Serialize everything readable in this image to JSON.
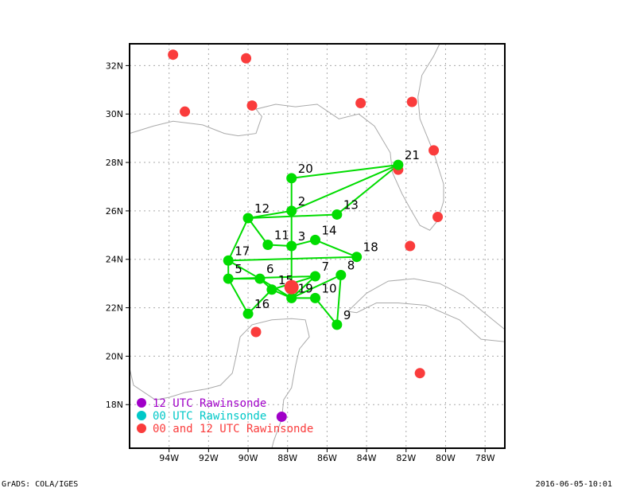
{
  "map": {
    "lon_range": [
      -96,
      -77
    ],
    "lat_range": [
      16.2,
      32.9
    ],
    "lon_ticks": [
      {
        "value": -94,
        "label": "94W"
      },
      {
        "value": -92,
        "label": "92W"
      },
      {
        "value": -90,
        "label": "90W"
      },
      {
        "value": -88,
        "label": "88W"
      },
      {
        "value": -86,
        "label": "86W"
      },
      {
        "value": -84,
        "label": "84W"
      },
      {
        "value": -82,
        "label": "82W"
      },
      {
        "value": -80,
        "label": "80W"
      },
      {
        "value": -78,
        "label": "78W"
      }
    ],
    "lat_ticks": [
      {
        "value": 18,
        "label": "18N"
      },
      {
        "value": 20,
        "label": "20N"
      },
      {
        "value": 22,
        "label": "22N"
      },
      {
        "value": 24,
        "label": "24N"
      },
      {
        "value": 26,
        "label": "26N"
      },
      {
        "value": 28,
        "label": "28N"
      },
      {
        "value": 30,
        "label": "30N"
      },
      {
        "value": 32,
        "label": "32N"
      }
    ]
  },
  "drop_points": [
    {
      "id": "2",
      "lon": -87.8,
      "lat": 26.0
    },
    {
      "id": "3",
      "lon": -87.8,
      "lat": 24.55
    },
    {
      "id": "5",
      "lon": -91.0,
      "lat": 23.2
    },
    {
      "id": "6",
      "lon": -89.4,
      "lat": 23.2
    },
    {
      "id": "7",
      "lon": -86.6,
      "lat": 23.3
    },
    {
      "id": "8",
      "lon": -85.3,
      "lat": 23.35
    },
    {
      "id": "9",
      "lon": -85.5,
      "lat": 21.3
    },
    {
      "id": "10",
      "lon": -86.6,
      "lat": 22.4
    },
    {
      "id": "11",
      "lon": -89.0,
      "lat": 24.6
    },
    {
      "id": "12",
      "lon": -90.0,
      "lat": 25.7
    },
    {
      "id": "13",
      "lon": -85.5,
      "lat": 25.85
    },
    {
      "id": "14",
      "lon": -86.6,
      "lat": 24.8
    },
    {
      "id": "15",
      "lon": -88.8,
      "lat": 22.75
    },
    {
      "id": "16",
      "lon": -90.0,
      "lat": 21.75
    },
    {
      "id": "17",
      "lon": -91.0,
      "lat": 23.95
    },
    {
      "id": "18",
      "lon": -84.5,
      "lat": 24.1
    },
    {
      "id": "19",
      "lon": -87.8,
      "lat": 22.4
    },
    {
      "id": "20",
      "lon": -87.8,
      "lat": 27.35
    },
    {
      "id": "21",
      "lon": -82.4,
      "lat": 27.9
    }
  ],
  "flight_track": [
    "21",
    "20",
    "2",
    "21",
    "13",
    "12",
    "2",
    "3",
    "11",
    "12",
    "17",
    "18",
    "14",
    "3",
    "19",
    "10",
    "9",
    "8",
    "19",
    "7",
    "5",
    "16",
    "15",
    "19",
    "6",
    "5",
    "17",
    "6",
    "15",
    "7"
  ],
  "storm_center": {
    "lon": -87.8,
    "lat": 22.85
  },
  "rawinsonde_12utc": [
    {
      "lon": -88.3,
      "lat": 17.5
    }
  ],
  "rawinsonde_00_12utc": [
    {
      "lon": -93.8,
      "lat": 32.45
    },
    {
      "lon": -90.1,
      "lat": 32.3
    },
    {
      "lon": -93.2,
      "lat": 30.1
    },
    {
      "lon": -89.8,
      "lat": 30.35
    },
    {
      "lon": -84.3,
      "lat": 30.45
    },
    {
      "lon": -81.7,
      "lat": 30.5
    },
    {
      "lon": -80.6,
      "lat": 28.5
    },
    {
      "lon": -82.4,
      "lat": 27.7
    },
    {
      "lon": -80.4,
      "lat": 25.75
    },
    {
      "lon": -81.8,
      "lat": 24.55
    },
    {
      "lon": -89.6,
      "lat": 21.0
    },
    {
      "lon": -81.3,
      "lat": 19.3
    }
  ],
  "legend": [
    {
      "label": "12 UTC Rawinsonde",
      "color": "#a000c8"
    },
    {
      "label": "00 UTC Rawinsonde",
      "color": "#00c8c8"
    },
    {
      "label": "00 and 12 UTC Rawinsonde",
      "color": "#fa3c3c"
    }
  ],
  "colors": {
    "drop_point": "#00dc00",
    "track": "#00dc00",
    "rawinsonde_red": "#fa3c3c",
    "rawinsonde_purple": "#a000c8",
    "coast": "#aaaaaa",
    "grid": "#aaaaaa"
  },
  "footer": {
    "left": "GrADS: COLA/IGES",
    "right": "2016-06-05-10:01"
  }
}
